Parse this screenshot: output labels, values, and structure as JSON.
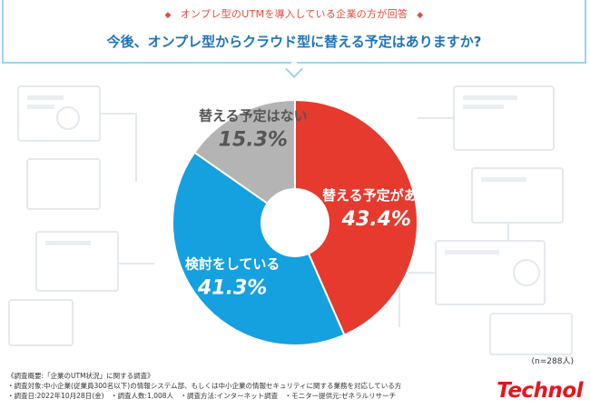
{
  "header": {
    "subtitle": "オンプレ型のUTMを導入している企業の方が回答",
    "subtitle_marker": "◆",
    "title": "今後、オンプレ型からクラウド型に替える予定はありますか?"
  },
  "chart_data": {
    "type": "pie",
    "title": "今後、オンプレ型からクラウド型に替える予定はありますか?",
    "slices": [
      {
        "label": "替える予定がある",
        "value": 43.4,
        "value_text": "43.4%",
        "color": "#e63a2e",
        "text_color": "#ffffff"
      },
      {
        "label": "検討をしている",
        "value": 41.3,
        "value_text": "41.3%",
        "color": "#15a0e0",
        "text_color": "#ffffff"
      },
      {
        "label": "替える予定はない",
        "value": 15.3,
        "value_text": "15.3%",
        "color": "#b4b4b4",
        "text_color": "#555555"
      }
    ],
    "start_angle_deg": 0,
    "direction": "clockwise",
    "donut_hole": true,
    "sample_size": "(n=288人)"
  },
  "footnote": [
    "《調査概要:「企業のUTM状況」に関する調査》",
    "・調査対象:中小企業(従業員300名以下)の情報システム部、もしくは中小企業の情報セキュリティに関する業務を対応している方",
    "・調査日:2022年10月28日(金)　・調査人数:1,008人　・調査方法:インターネット調査　・モニター提供元:ゼネラルリサーチ"
  ],
  "brand": {
    "logo_text": "Technol",
    "color": "#e8141d"
  },
  "colors": {
    "accent": "#1f74b8",
    "frame": "#9ed3ea",
    "background_sketch": "#e6ebef"
  }
}
